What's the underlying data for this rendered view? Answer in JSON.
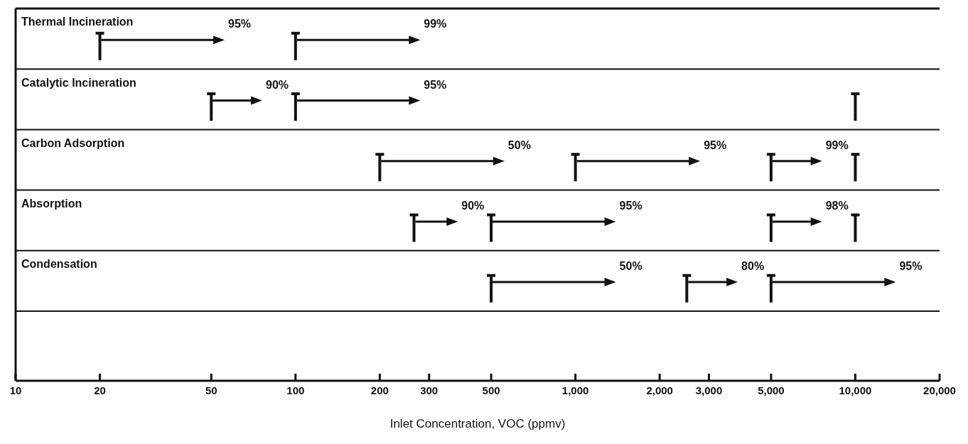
{
  "chart_data": {
    "type": "scatter",
    "orientation": "horizontal",
    "log": "x",
    "xlabel": "Inlet Concentration, VOC (ppmv)",
    "categories": [
      "Thermal Incineration",
      "Catalytic Incineration",
      "Carbon Adsorption",
      "Absorption",
      "Condensation"
    ],
    "series": [
      {
        "color": "#111111",
        "values": [
          20,
          50,
          200,
          265,
          500
        ]
      },
      {
        "color": "#111111",
        "values": [
          100,
          100,
          1000,
          500,
          2500
        ]
      },
      {
        "color": "#111111",
        "values": [
          null,
          null,
          5000,
          5000,
          5000
        ]
      },
      {
        "color": "#111111",
        "values": [
          null,
          10000,
          10000,
          10000,
          null
        ]
      }
    ],
    "annotations": [
      "95%",
      "90%",
      "50%",
      "90%",
      "50%",
      "99%",
      "95%",
      "95%",
      "95%",
      "80%",
      "99%",
      "98%",
      "95%"
    ],
    "xlim": [
      10,
      20000
    ],
    "xticks": [
      10,
      20,
      50,
      100,
      200,
      300,
      500,
      {
        "value": 1000,
        "label": "1,000"
      },
      {
        "value": 2000,
        "label": "2,000"
      },
      {
        "value": 3000,
        "label": "3,000"
      },
      {
        "value": 5000,
        "label": "5,000"
      },
      {
        "value": 10000,
        "label": "10,000"
      },
      {
        "value": 20000,
        "label": "20,000"
      }
    ],
    "grid": "y"
  }
}
